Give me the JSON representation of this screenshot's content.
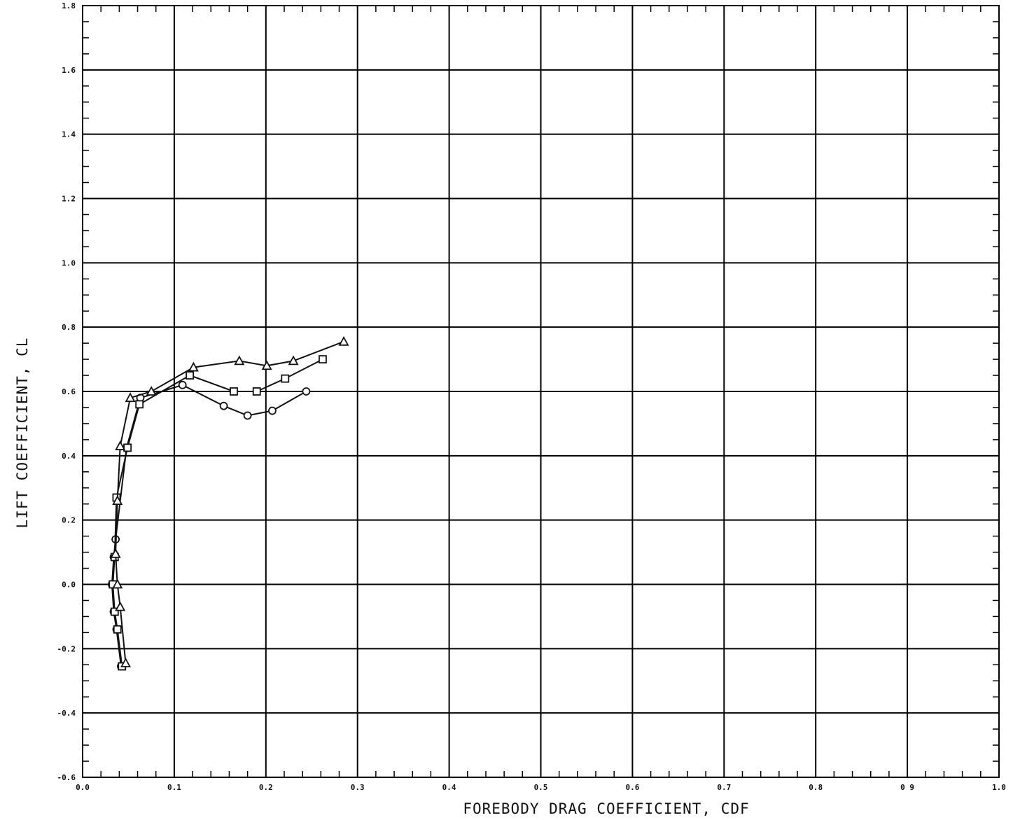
{
  "chart_data": {
    "type": "line",
    "title": "",
    "xlabel": "FOREBODY DRAG COEFFICIENT, CDF",
    "ylabel": "LIFT COEFFICIENT, CL",
    "xlim": [
      0.0,
      1.0
    ],
    "ylim": [
      -0.6,
      1.8
    ],
    "grid": true,
    "legend": "none",
    "x_ticks": [
      {
        "value": 0.0,
        "label": "0.0"
      },
      {
        "value": 0.1,
        "label": "0.1"
      },
      {
        "value": 0.2,
        "label": "0.2"
      },
      {
        "value": 0.3,
        "label": "0.3"
      },
      {
        "value": 0.4,
        "label": "0.4"
      },
      {
        "value": 0.5,
        "label": "0.5"
      },
      {
        "value": 0.6,
        "label": "0.6"
      },
      {
        "value": 0.7,
        "label": "0.7"
      },
      {
        "value": 0.8,
        "label": "0.8"
      },
      {
        "value": 0.9,
        "label": "0 9"
      },
      {
        "value": 1.0,
        "label": "1.0"
      }
    ],
    "y_ticks": [
      {
        "value": -0.6,
        "label": "-0.6"
      },
      {
        "value": -0.4,
        "label": "-0.4"
      },
      {
        "value": -0.2,
        "label": "-0.2"
      },
      {
        "value": 0.0,
        "label": "0.0"
      },
      {
        "value": 0.2,
        "label": "0.2"
      },
      {
        "value": 0.4,
        "label": "0.4"
      },
      {
        "value": 0.6,
        "label": "0.6"
      },
      {
        "value": 0.8,
        "label": "0.8"
      },
      {
        "value": 1.0,
        "label": "1.0"
      },
      {
        "value": 1.2,
        "label": "1.2"
      },
      {
        "value": 1.4,
        "label": "1.4"
      },
      {
        "value": 1.6,
        "label": "1.6"
      },
      {
        "value": 1.8,
        "label": "1.8"
      }
    ],
    "series": [
      {
        "marker": "circle",
        "x": [
          0.042,
          0.037,
          0.034,
          0.032,
          0.034,
          0.036,
          0.048,
          0.063,
          0.109,
          0.154,
          0.18,
          0.207,
          0.244
        ],
        "y": [
          -0.255,
          -0.14,
          -0.085,
          0.0,
          0.085,
          0.14,
          0.425,
          0.58,
          0.62,
          0.555,
          0.525,
          0.54,
          0.6
        ]
      },
      {
        "marker": "square",
        "x": [
          0.043,
          0.038,
          0.035,
          0.033,
          0.035,
          0.037,
          0.049,
          0.062,
          0.117,
          0.165,
          0.19,
          0.221,
          0.262
        ],
        "y": [
          -0.255,
          -0.14,
          -0.085,
          0.0,
          0.085,
          0.27,
          0.425,
          0.56,
          0.65,
          0.6,
          0.6,
          0.64,
          0.7
        ]
      },
      {
        "marker": "triangle",
        "x": [
          0.047,
          0.041,
          0.038,
          0.036,
          0.038,
          0.041,
          0.052,
          0.075,
          0.121,
          0.171,
          0.201,
          0.23,
          0.285
        ],
        "y": [
          -0.245,
          -0.07,
          0.0,
          0.095,
          0.26,
          0.43,
          0.58,
          0.6,
          0.675,
          0.695,
          0.68,
          0.695,
          0.755
        ]
      }
    ]
  }
}
